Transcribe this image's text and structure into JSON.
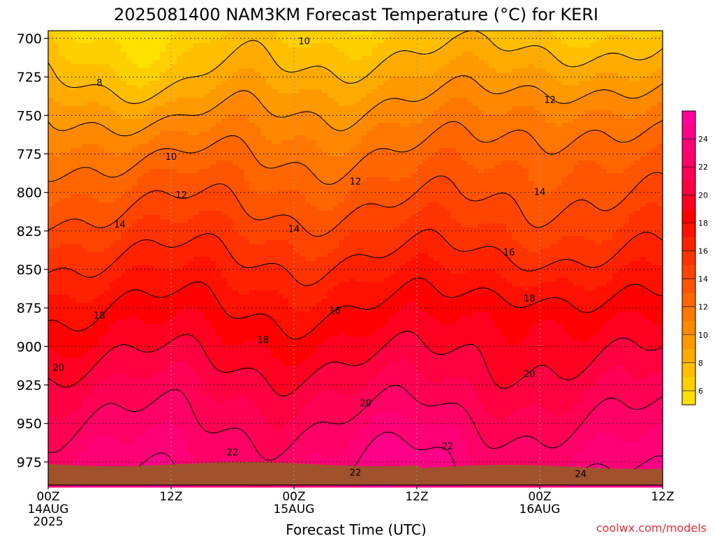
{
  "chart_data": {
    "type": "heatmap",
    "title": "2025081400 NAM3KM Forecast Temperature (°C) for KERI",
    "xlabel": "Forecast Time (UTC)",
    "ylabel": "",
    "x_range_hours": [
      0,
      60
    ],
    "y_range_hPa": [
      695,
      990
    ],
    "y_scale": "inverted (pressure)",
    "x_ticks": [
      {
        "hour": 0,
        "label": "00Z",
        "date": "14AUG",
        "year": "2025"
      },
      {
        "hour": 12,
        "label": "12Z",
        "date": "",
        "year": ""
      },
      {
        "hour": 24,
        "label": "00Z",
        "date": "15AUG",
        "year": ""
      },
      {
        "hour": 36,
        "label": "12Z",
        "date": "",
        "year": ""
      },
      {
        "hour": 48,
        "label": "00Z",
        "date": "16AUG",
        "year": ""
      },
      {
        "hour": 60,
        "label": "12Z",
        "date": "",
        "year": ""
      }
    ],
    "y_ticks": [
      700,
      725,
      750,
      775,
      800,
      825,
      850,
      875,
      900,
      925,
      950,
      975
    ],
    "grid": true,
    "legend_placement": "right",
    "colorbar": {
      "levels": [
        5,
        6,
        7,
        8,
        9,
        10,
        11,
        12,
        13,
        14,
        15,
        16,
        17,
        18,
        19,
        20,
        21,
        22,
        23,
        24,
        25,
        26
      ],
      "tick_labels": [
        "6",
        "8",
        "10",
        "12",
        "14",
        "16",
        "18",
        "20",
        "22",
        "24"
      ],
      "colors": [
        "#ffe000",
        "#ffd000",
        "#ffbf00",
        "#ffaa00",
        "#ff9900",
        "#ff8800",
        "#ff7700",
        "#ff6600",
        "#ff5500",
        "#ff4400",
        "#ff3300",
        "#ff2200",
        "#ff1100",
        "#ff0000",
        "#ff0020",
        "#ff0040",
        "#ff0055",
        "#ff0066",
        "#ff0077",
        "#ff0088",
        "#ff0099"
      ]
    },
    "isotherm_labels": [
      {
        "value": "8",
        "hour": 5,
        "p": 729
      },
      {
        "value": "10",
        "hour": 25,
        "p": 702
      },
      {
        "value": "10",
        "hour": 12,
        "p": 777
      },
      {
        "value": "12",
        "hour": 49,
        "p": 740
      },
      {
        "value": "12",
        "hour": 30,
        "p": 793
      },
      {
        "value": "12",
        "hour": 13,
        "p": 802
      },
      {
        "value": "14",
        "hour": 48,
        "p": 800
      },
      {
        "value": "14",
        "hour": 7,
        "p": 821
      },
      {
        "value": "14",
        "hour": 24,
        "p": 824
      },
      {
        "value": "16",
        "hour": 45,
        "p": 839
      },
      {
        "value": "16",
        "hour": 28,
        "p": 877
      },
      {
        "value": "18",
        "hour": 47,
        "p": 869
      },
      {
        "value": "18",
        "hour": 5,
        "p": 880
      },
      {
        "value": "18",
        "hour": 21,
        "p": 896
      },
      {
        "value": "20",
        "hour": 1,
        "p": 914
      },
      {
        "value": "20",
        "hour": 31,
        "p": 937
      },
      {
        "value": "20",
        "hour": 47,
        "p": 918
      },
      {
        "value": "22",
        "hour": 18,
        "p": 969
      },
      {
        "value": "22",
        "hour": 39,
        "p": 965
      },
      {
        "value": "22",
        "hour": 30,
        "p": 982
      },
      {
        "value": "24",
        "hour": 52,
        "p": 983
      }
    ],
    "terrain_color": "#a0522d"
  },
  "watermark": "coolwx.com/models"
}
